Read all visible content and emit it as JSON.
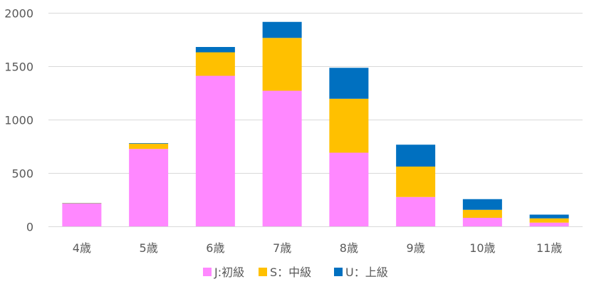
{
  "chart_data": {
    "type": "bar",
    "stacked": true,
    "title": "",
    "xlabel": "",
    "ylabel": "",
    "categories": [
      "4歳",
      "5歳",
      "6歳",
      "7歳",
      "8歳",
      "9歳",
      "10歳",
      "11歳"
    ],
    "series": [
      {
        "name": "J:初級",
        "color": "#ff88ff",
        "values": [
          215,
          725,
          1410,
          1270,
          690,
          275,
          80,
          35
        ]
      },
      {
        "name": "S：中級",
        "color": "#ffc000",
        "values": [
          3,
          50,
          220,
          495,
          505,
          285,
          75,
          40
        ]
      },
      {
        "name": "U：上級",
        "color": "#0070c0",
        "values": [
          2,
          5,
          50,
          150,
          290,
          205,
          100,
          35
        ]
      }
    ],
    "ylim": [
      0,
      2000
    ],
    "yticks": [
      0,
      500,
      1000,
      1500,
      2000
    ],
    "grid": true,
    "legend": "bottom-center"
  }
}
